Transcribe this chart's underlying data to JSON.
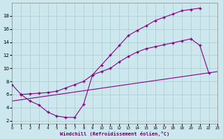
{
  "xlabel": "Windchill (Refroidissement éolien,°C)",
  "bg_color": "#cce8ee",
  "line_color": "#880088",
  "grid_color": "#aacccc",
  "xlim": [
    0,
    23
  ],
  "ylim": [
    1.5,
    20
  ],
  "xticks": [
    0,
    1,
    2,
    3,
    4,
    5,
    6,
    7,
    8,
    9,
    10,
    11,
    12,
    13,
    14,
    15,
    16,
    17,
    18,
    19,
    20,
    21,
    22,
    23
  ],
  "yticks": [
    2,
    4,
    6,
    8,
    10,
    12,
    14,
    16,
    18
  ],
  "curve_upper_x": [
    1,
    2,
    3,
    4,
    5,
    6,
    7,
    8,
    9,
    10,
    11,
    12,
    13,
    14,
    15,
    16,
    17,
    18,
    19,
    20,
    21
  ],
  "curve_upper_y": [
    6.0,
    6.1,
    6.2,
    6.3,
    6.5,
    7.0,
    7.5,
    8.0,
    9.0,
    10.5,
    12.0,
    13.5,
    15.0,
    15.8,
    16.5,
    17.3,
    17.8,
    18.3,
    18.8,
    19.0,
    19.2
  ],
  "curve_mid_x": [
    0,
    1,
    2,
    3,
    4,
    5,
    6,
    7,
    8,
    9,
    10,
    11,
    12,
    13,
    14,
    15,
    16,
    17,
    18,
    19,
    20,
    21,
    22
  ],
  "curve_mid_y": [
    7.5,
    6.0,
    5.0,
    4.4,
    3.3,
    2.7,
    2.5,
    2.5,
    4.5,
    9.0,
    9.5,
    10.0,
    11.0,
    11.8,
    12.5,
    13.0,
    13.3,
    13.6,
    13.9,
    14.2,
    14.5,
    13.5,
    9.3
  ],
  "line_x": [
    0,
    23
  ],
  "line_y": [
    5.0,
    9.5
  ]
}
